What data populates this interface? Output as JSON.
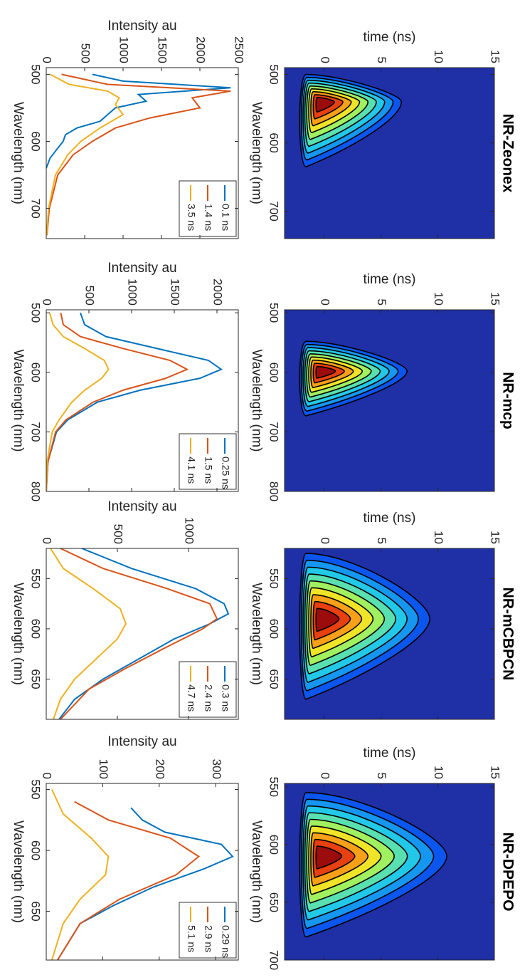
{
  "chart_data": [
    {
      "type": "contour",
      "title": "NR-Zeonex",
      "xlabel": "Wavelength (nm)",
      "ylabel": "time (ns)",
      "xlim": [
        490,
        740
      ],
      "xticks": [
        500,
        600,
        700
      ],
      "ylim": [
        -3.5,
        15
      ],
      "yticks": [
        0,
        5,
        10,
        15
      ]
    },
    {
      "type": "contour",
      "title": "NR-mcp",
      "xlabel": "Wavelength (nm)",
      "ylabel": "time (ns)",
      "xlim": [
        495,
        800
      ],
      "xticks": [
        500,
        600,
        700,
        800
      ],
      "ylim": [
        -3.5,
        15
      ],
      "yticks": [
        0,
        5,
        10,
        15
      ]
    },
    {
      "type": "contour",
      "title": "NR-mCBPCN",
      "xlabel": "Wavelength (nm)",
      "ylabel": "time (ns)",
      "xlim": [
        520,
        690
      ],
      "xticks": [
        550,
        600,
        650
      ],
      "ylim": [
        -3.5,
        15
      ],
      "yticks": [
        0,
        5,
        10,
        15
      ]
    },
    {
      "type": "contour",
      "title": "NR-DPEPO",
      "xlabel": "Wavelength (nm)",
      "ylabel": "time (ns)",
      "xlim": [
        547,
        700
      ],
      "xticks": [
        550,
        600,
        650,
        700
      ],
      "ylim": [
        -3.5,
        15
      ],
      "yticks": [
        0,
        5,
        10,
        15
      ]
    },
    {
      "type": "line",
      "xlabel": "Wavelength (nm)",
      "ylabel": "Intensity au",
      "xlim": [
        490,
        745
      ],
      "xticks": [
        500,
        600,
        700
      ],
      "ylim": [
        0,
        2500
      ],
      "yticks": [
        0,
        500,
        1000,
        1500,
        2000,
        2500
      ],
      "legend": "upper right",
      "series": [
        {
          "name": "0.1 ns",
          "color": "#0072bd",
          "x": [
            500,
            510,
            520,
            530,
            540,
            550,
            560,
            570,
            580,
            590,
            600,
            610,
            625,
            640
          ],
          "values": [
            600,
            1000,
            2400,
            1200,
            1300,
            900,
            800,
            700,
            400,
            250,
            220,
            150,
            50,
            0
          ]
        },
        {
          "name": "1.4 ns",
          "color": "#d95319",
          "x": [
            500,
            515,
            525,
            535,
            550,
            565,
            580,
            600,
            620,
            650,
            700,
            740
          ],
          "values": [
            200,
            800,
            2400,
            1900,
            2000,
            1350,
            900,
            600,
            350,
            150,
            40,
            10
          ]
        },
        {
          "name": "3.5 ns",
          "color": "#edb120",
          "x": [
            500,
            515,
            525,
            535,
            545,
            560,
            580,
            600,
            620,
            650,
            700,
            740
          ],
          "values": [
            50,
            300,
            800,
            950,
            900,
            1000,
            700,
            450,
            280,
            120,
            30,
            5
          ]
        }
      ]
    },
    {
      "type": "line",
      "xlabel": "Wavelength (nm)",
      "ylabel": "Intensity au",
      "xlim": [
        495,
        800
      ],
      "xticks": [
        500,
        600,
        700,
        800
      ],
      "ylim": [
        0,
        2250
      ],
      "yticks": [
        0,
        500,
        1000,
        1500,
        2000
      ],
      "legend": "upper right",
      "series": [
        {
          "name": "0.25 ns",
          "color": "#0072bd",
          "x": [
            500,
            520,
            540,
            560,
            580,
            595,
            610,
            630,
            650,
            680,
            700,
            750,
            800
          ],
          "values": [
            400,
            450,
            700,
            1300,
            1900,
            2050,
            1800,
            1100,
            600,
            250,
            120,
            20,
            0
          ]
        },
        {
          "name": "1.5 ns",
          "color": "#d95319",
          "x": [
            500,
            520,
            540,
            560,
            580,
            595,
            610,
            630,
            650,
            680,
            700,
            750,
            800
          ],
          "values": [
            170,
            200,
            400,
            900,
            1450,
            1650,
            1400,
            900,
            550,
            230,
            110,
            20,
            0
          ]
        },
        {
          "name": "4.1 ns",
          "color": "#edb120",
          "x": [
            500,
            520,
            540,
            560,
            580,
            595,
            610,
            630,
            650,
            680,
            700,
            750,
            800
          ],
          "values": [
            40,
            80,
            200,
            450,
            680,
            730,
            650,
            450,
            300,
            150,
            70,
            10,
            0
          ]
        }
      ]
    },
    {
      "type": "line",
      "xlabel": "Wavelength (nm)",
      "ylabel": "Intensity au",
      "xlim": [
        520,
        690
      ],
      "xticks": [
        550,
        600,
        650
      ],
      "ylim": [
        0,
        1350
      ],
      "yticks": [
        0,
        500,
        1000
      ],
      "legend": "upper right",
      "series": [
        {
          "name": "0.3 ns",
          "color": "#0072bd",
          "x": [
            520,
            540,
            560,
            575,
            585,
            595,
            610,
            630,
            650,
            670,
            690
          ],
          "values": [
            250,
            600,
            1050,
            1250,
            1280,
            1150,
            900,
            650,
            400,
            200,
            90
          ]
        },
        {
          "name": "2.4 ns",
          "color": "#d95319",
          "x": [
            520,
            540,
            560,
            575,
            590,
            600,
            620,
            640,
            660,
            690
          ],
          "values": [
            100,
            400,
            850,
            1150,
            1200,
            1100,
            820,
            550,
            300,
            100
          ]
        },
        {
          "name": "4.7 ns",
          "color": "#edb120",
          "x": [
            520,
            540,
            560,
            580,
            595,
            610,
            630,
            650,
            670,
            690
          ],
          "values": [
            30,
            120,
            330,
            520,
            560,
            500,
            350,
            200,
            100,
            50
          ]
        }
      ]
    },
    {
      "type": "line",
      "xlabel": "Wavelength (nm)",
      "ylabel": "Intensity au",
      "xlim": [
        545,
        690
      ],
      "xticks": [
        550,
        600,
        650
      ],
      "ylim": [
        0,
        340
      ],
      "yticks": [
        0,
        100,
        200,
        300
      ],
      "legend": "upper right",
      "series": [
        {
          "name": "0.29 ns",
          "color": "#0072bd",
          "x": [
            565,
            575,
            585,
            595,
            605,
            615,
            630,
            645,
            660,
            690
          ],
          "values": [
            150,
            170,
            210,
            310,
            330,
            280,
            190,
            120,
            60,
            20
          ]
        },
        {
          "name": "2.9 ns",
          "color": "#d95319",
          "x": [
            560,
            575,
            590,
            605,
            620,
            640,
            660,
            690
          ],
          "values": [
            50,
            110,
            220,
            270,
            230,
            130,
            60,
            20
          ]
        },
        {
          "name": "5.1 ns",
          "color": "#edb120",
          "x": [
            550,
            570,
            590,
            605,
            620,
            640,
            660,
            690
          ],
          "values": [
            10,
            30,
            80,
            110,
            105,
            60,
            30,
            10
          ]
        }
      ]
    }
  ]
}
